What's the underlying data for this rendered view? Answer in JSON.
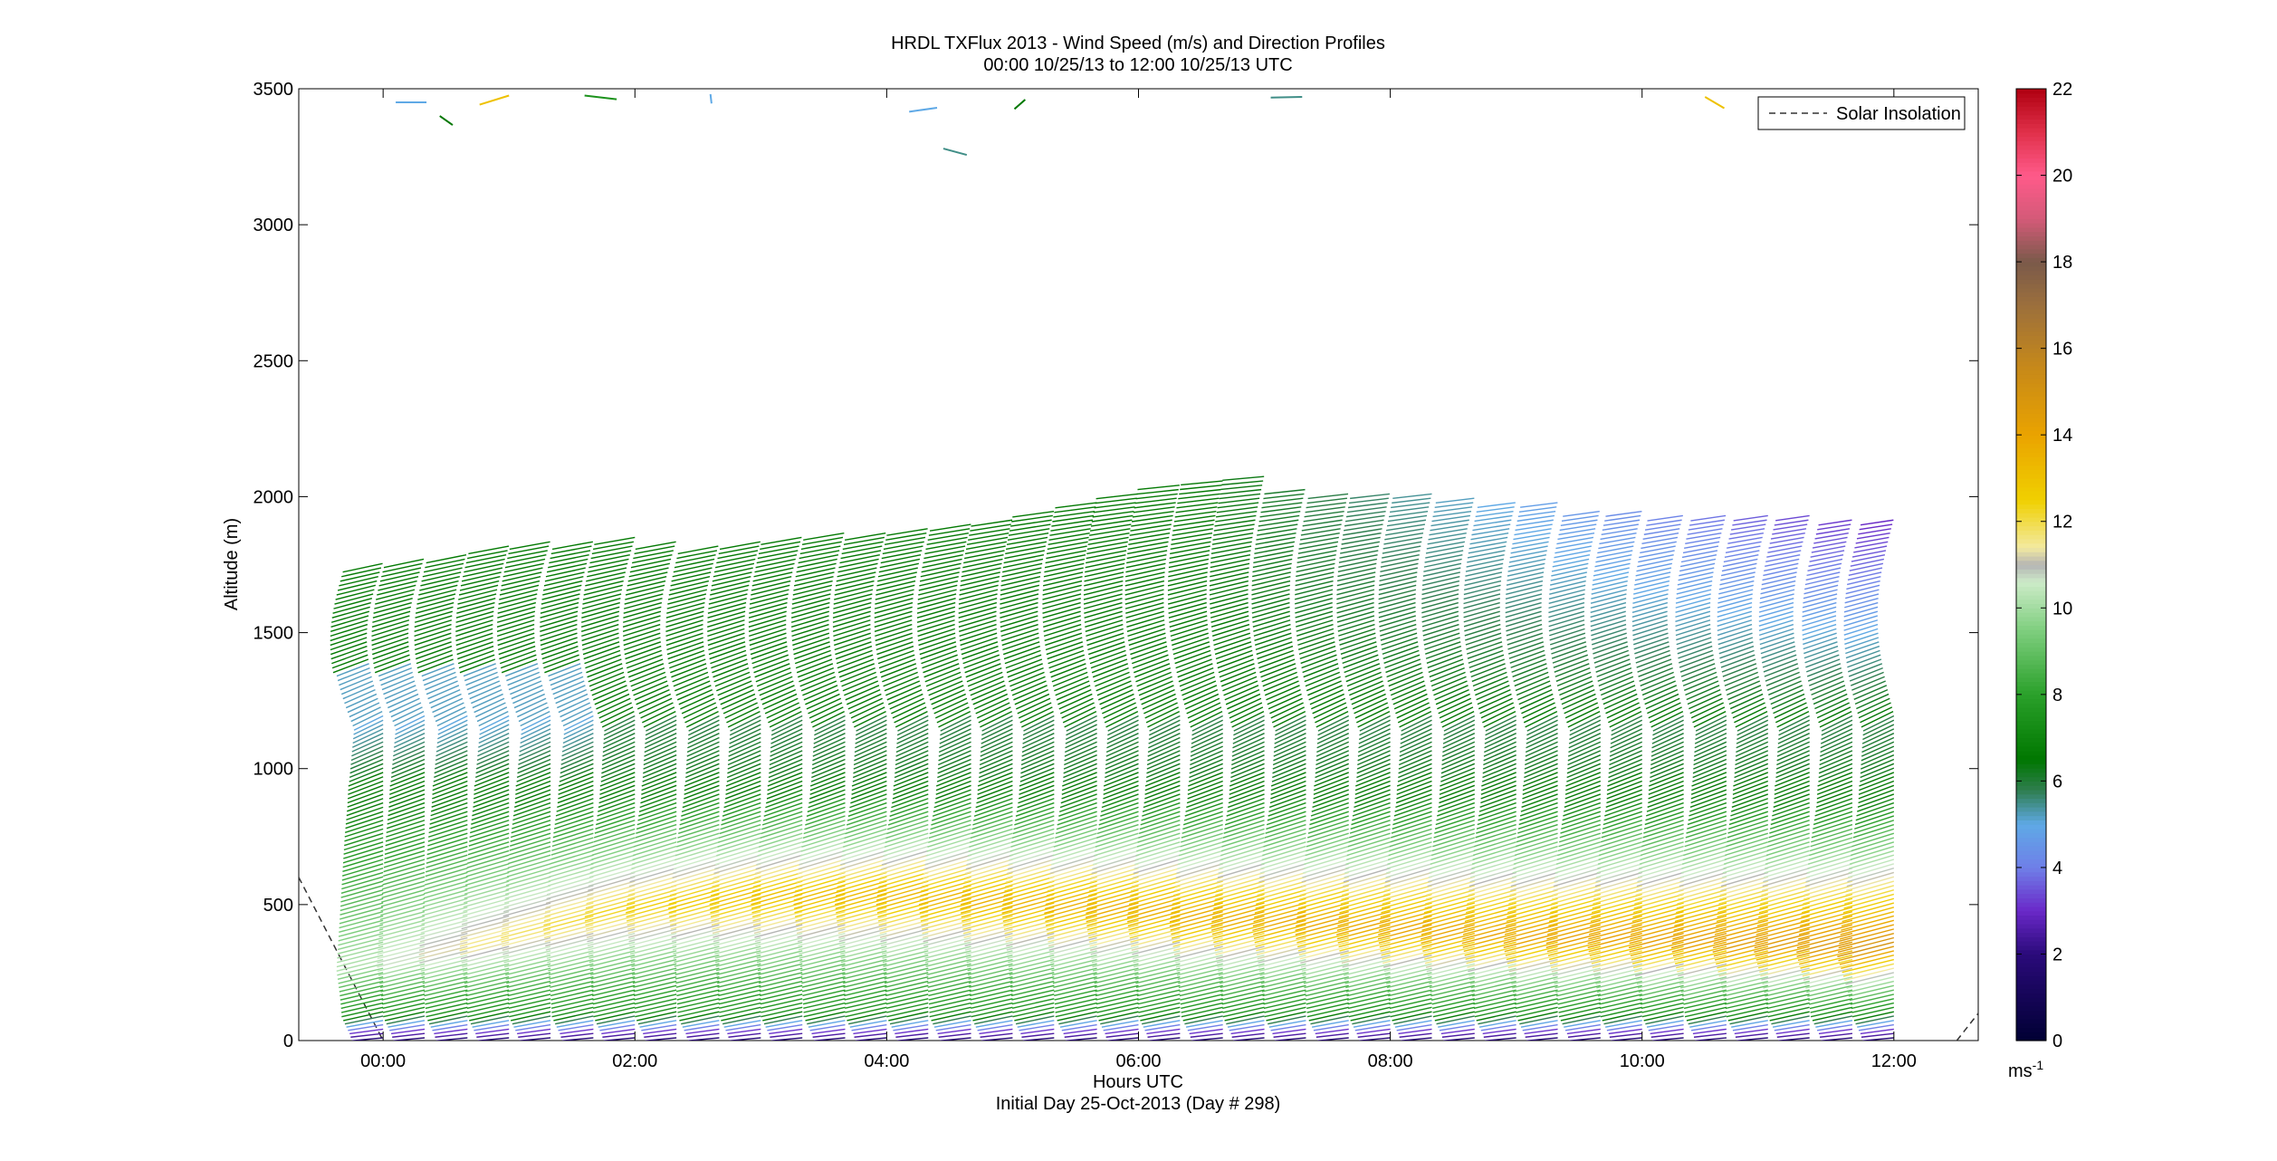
{
  "chart_data": {
    "type": "wind-barb-profile",
    "title": "HRDL TXFlux 2013 - Wind Speed (m/s) and Direction Profiles",
    "subtitle": "00:00 10/25/13 to 12:00 10/25/13  UTC",
    "xlabel": "Hours UTC",
    "xlabel2": "Initial Day 25-Oct-2013 (Day # 298)",
    "ylabel": "Altitude (m)",
    "xlim": [
      -0.67,
      12.67
    ],
    "ylim": [
      0,
      3500
    ],
    "xticks": [
      0,
      2,
      4,
      6,
      8,
      10,
      12
    ],
    "xtick_labels": [
      "00:00",
      "02:00",
      "04:00",
      "06:00",
      "08:00",
      "10:00",
      "12:00"
    ],
    "yticks": [
      0,
      500,
      1000,
      1500,
      2000,
      2500,
      3000,
      3500
    ],
    "ytick_labels": [
      "0",
      "500",
      "1000",
      "1500",
      "2000",
      "2500",
      "3000",
      "3500"
    ],
    "legend": {
      "label": "Solar Insolation",
      "placement": "top-right",
      "line_style": "dashed"
    },
    "solar_insolation": {
      "segments": [
        {
          "x": [
            -0.67,
            0.0
          ],
          "y": [
            600,
            0
          ]
        },
        {
          "x": [
            12.5,
            12.67
          ],
          "y": [
            0,
            100
          ]
        }
      ]
    },
    "colorbar": {
      "min": 0,
      "max": 22,
      "ticks": [
        0,
        2,
        4,
        6,
        8,
        10,
        12,
        14,
        16,
        18,
        20,
        22
      ],
      "tick_labels": [
        "0",
        "2",
        "4",
        "6",
        "8",
        "10",
        "12",
        "14",
        "16",
        "18",
        "20",
        "22"
      ],
      "unit_label": "ms",
      "unit_exponent": "-1",
      "stops": [
        {
          "v": 0,
          "color": "#000033"
        },
        {
          "v": 2,
          "color": "#2a0a7a"
        },
        {
          "v": 3,
          "color": "#6a28c8"
        },
        {
          "v": 4,
          "color": "#6f7fe8"
        },
        {
          "v": 5,
          "color": "#5fa9e6"
        },
        {
          "v": 5.8,
          "color": "#2e7d4e"
        },
        {
          "v": 6.5,
          "color": "#007700"
        },
        {
          "v": 8,
          "color": "#2aa02a"
        },
        {
          "v": 9.5,
          "color": "#7fcf7f"
        },
        {
          "v": 10.6,
          "color": "#cdebc8"
        },
        {
          "v": 11,
          "color": "#b4b4b4"
        },
        {
          "v": 11.4,
          "color": "#f3eaa0"
        },
        {
          "v": 12.5,
          "color": "#f0d000"
        },
        {
          "v": 14,
          "color": "#eaa300"
        },
        {
          "v": 15.5,
          "color": "#c88a18"
        },
        {
          "v": 17,
          "color": "#9c6f3c"
        },
        {
          "v": 18,
          "color": "#7a5a4a"
        },
        {
          "v": 19,
          "color": "#d45a78"
        },
        {
          "v": 20,
          "color": "#ff5a8a"
        },
        {
          "v": 21,
          "color": "#e0304a"
        },
        {
          "v": 22,
          "color": "#b00010"
        }
      ]
    },
    "profile_times": [
      0.0,
      0.33,
      0.67,
      1.0,
      1.33,
      1.67,
      2.0,
      2.33,
      2.67,
      3.0,
      3.33,
      3.67,
      4.0,
      4.33,
      4.67,
      5.0,
      5.33,
      5.67,
      6.0,
      6.33,
      6.67,
      7.0,
      7.33,
      7.67,
      8.0,
      8.33,
      8.67,
      9.0,
      9.33,
      9.67,
      10.0,
      10.33,
      10.67,
      11.0,
      11.33,
      11.67,
      12.0
    ],
    "profile_tops_m": [
      1760,
      1780,
      1800,
      1820,
      1840,
      1840,
      1850,
      1840,
      1830,
      1840,
      1860,
      1880,
      1880,
      1890,
      1900,
      1920,
      1950,
      1980,
      2020,
      2050,
      2060,
      2080,
      2040,
      2020,
      2020,
      2010,
      2000,
      1990,
      1980,
      1960,
      1950,
      1940,
      1940,
      1930,
      1930,
      1920,
      1920
    ],
    "jet_peak_altitude_m": [
      300,
      320,
      350,
      380,
      420,
      460,
      500,
      520,
      540,
      550,
      560,
      560,
      560,
      560,
      550,
      540,
      530,
      520,
      510,
      500,
      480,
      470,
      460,
      450,
      440,
      430,
      420,
      410,
      400,
      400,
      400,
      390,
      390,
      380,
      380,
      370,
      360
    ],
    "jet_peak_speed_ms": [
      10.2,
      10.8,
      11.3,
      11.7,
      11.9,
      12.2,
      12.4,
      12.6,
      12.8,
      13.0,
      13.1,
      13.2,
      13.3,
      13.4,
      13.4,
      13.5,
      13.5,
      13.6,
      13.7,
      13.7,
      13.8,
      13.8,
      13.8,
      13.9,
      13.9,
      14.0,
      14.0,
      14.0,
      14.1,
      14.2,
      14.2,
      14.3,
      14.4,
      14.5,
      14.6,
      14.8,
      15.0
    ],
    "scattered_barbs_near_3500m": [
      {
        "x": 0.1,
        "alt": 3450,
        "speed": 5
      },
      {
        "x": 0.45,
        "alt": 3400,
        "speed": 6.5
      },
      {
        "x": 1.0,
        "alt": 3475,
        "speed": 13
      },
      {
        "x": 1.6,
        "alt": 3475,
        "speed": 7.5
      },
      {
        "x": 2.6,
        "alt": 3480,
        "speed": 5
      },
      {
        "x": 4.4,
        "alt": 3430,
        "speed": 5
      },
      {
        "x": 4.45,
        "alt": 3280,
        "speed": 5.5
      },
      {
        "x": 5.1,
        "alt": 3460,
        "speed": 6.5
      },
      {
        "x": 7.3,
        "alt": 3470,
        "speed": 5.5
      },
      {
        "x": 10.5,
        "alt": 3470,
        "speed": 13
      }
    ]
  }
}
